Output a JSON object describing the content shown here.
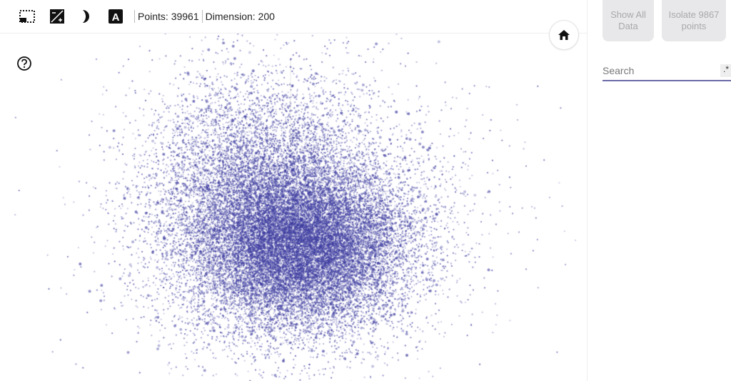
{
  "toolbar": {
    "icons": [
      "selection-box-icon",
      "night-mode-contrast-icon",
      "moon-icon",
      "label-font-icon"
    ],
    "points_label": "Points: 39961",
    "dimension_label": "Dimension: 200"
  },
  "sidebar": {
    "show_all_label": "Show All Data",
    "isolate_label": "Isolate 9867 points",
    "search_placeholder": "Search",
    "regex_label": ".*"
  },
  "colors": {
    "point": "#3f3ea0",
    "accent": "#6b6aa8"
  }
}
